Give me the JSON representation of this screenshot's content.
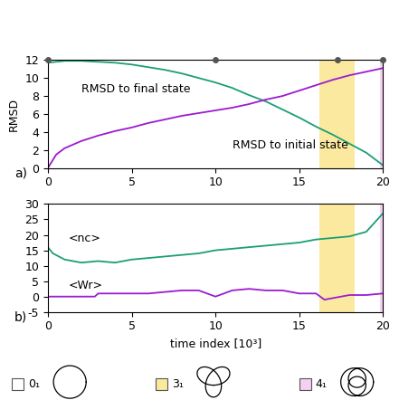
{
  "chart_data": [
    {
      "type": "line",
      "panel_label": "a)",
      "y_label": "RMSD",
      "xlim": [
        0,
        20
      ],
      "xticks": [
        0,
        5,
        10,
        15,
        20
      ],
      "ylim": [
        0,
        12
      ],
      "yticks": [
        0,
        2,
        4,
        6,
        8,
        10,
        12
      ],
      "snapshots": [
        0,
        10,
        17.3,
        20
      ],
      "series": [
        {
          "name": "RMSD to final state",
          "color": "#1b9e77",
          "x": [
            0,
            1,
            2,
            3,
            4,
            5,
            6,
            7,
            8,
            9,
            10,
            11,
            12,
            13,
            14,
            15,
            16,
            17,
            18,
            19,
            20
          ],
          "values": [
            11.7,
            11.9,
            11.9,
            11.8,
            11.7,
            11.5,
            11.2,
            10.9,
            10.5,
            10.0,
            9.5,
            8.9,
            8.1,
            7.4,
            6.5,
            5.6,
            4.6,
            3.7,
            2.7,
            1.7,
            0.3
          ]
        },
        {
          "name": "RMSD to initial state",
          "color": "#9b1bd0",
          "x": [
            0,
            0.5,
            1,
            2,
            3,
            4,
            5,
            6,
            7,
            8,
            9,
            10,
            11,
            12,
            13,
            14,
            15,
            16,
            17,
            18,
            19,
            20
          ],
          "values": [
            0,
            1.5,
            2.2,
            3.0,
            3.6,
            4.1,
            4.5,
            5.0,
            5.4,
            5.8,
            6.1,
            6.4,
            6.7,
            7.1,
            7.6,
            8.0,
            8.6,
            9.2,
            9.8,
            10.3,
            10.7,
            11.1
          ]
        }
      ]
    },
    {
      "type": "line",
      "panel_label": "b)",
      "x_label": "time index [10³]",
      "xlim": [
        0,
        20
      ],
      "xticks": [
        0,
        5,
        10,
        15,
        20
      ],
      "ylim": [
        -5,
        30
      ],
      "yticks": [
        -5,
        0,
        5,
        10,
        15,
        20,
        25,
        30
      ],
      "series": [
        {
          "name": "<nc>",
          "color": "#1b9e77",
          "x": [
            0,
            0.3,
            1,
            2,
            3,
            4,
            5,
            6,
            7,
            8,
            9,
            10,
            11,
            12,
            13,
            14,
            15,
            16,
            17,
            18,
            19,
            20
          ],
          "values": [
            16,
            14,
            12,
            11,
            11.5,
            11,
            12,
            12.5,
            13,
            13.5,
            14,
            15,
            15.5,
            16,
            16.5,
            17,
            17.5,
            18.5,
            19,
            19.5,
            21,
            27
          ]
        },
        {
          "name": "<Wr>",
          "color": "#9b1bd0",
          "x": [
            0,
            2.8,
            3,
            5,
            6,
            7,
            8,
            9,
            10,
            11,
            12,
            13,
            14,
            15,
            16,
            16.5,
            18,
            19,
            20
          ],
          "values": [
            0,
            0,
            1,
            1,
            1,
            1.5,
            2,
            2,
            0,
            2,
            2.5,
            2,
            2,
            1,
            1,
            -1,
            0.5,
            0.5,
            1
          ]
        }
      ]
    }
  ],
  "knot_legend": [
    {
      "name": "0₁",
      "color": "#ffffff"
    },
    {
      "name": "3₁",
      "color": "#fbe9a0"
    },
    {
      "name": "4₁",
      "color": "#f5d0f0"
    }
  ],
  "knot_intervals": [
    {
      "name": "3₁",
      "start": 16.2,
      "end": 18.3
    },
    {
      "name": "4₁",
      "start": 19.8,
      "end": 20
    }
  ]
}
